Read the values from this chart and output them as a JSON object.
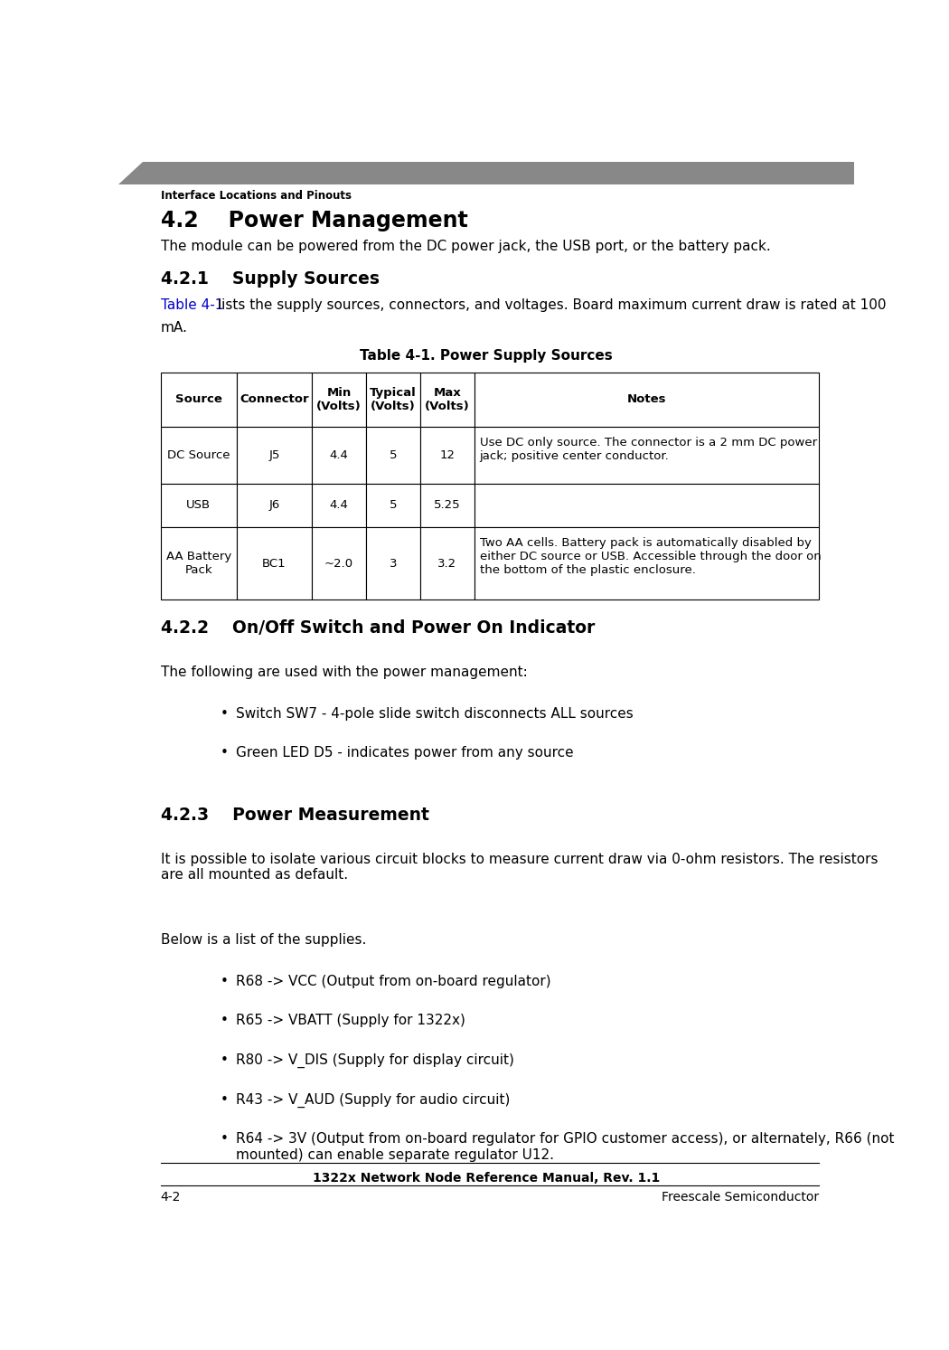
{
  "header_bar_color": "#888888",
  "header_text": "Interface Locations and Pinouts",
  "header_text_color": "#000000",
  "section_42_title": "4.2    Power Management",
  "section_42_body": "The module can be powered from the DC power jack, the USB port, or the battery pack.",
  "section_421_title": "4.2.1    Supply Sources",
  "section_421_intro_link": "Table 4-1",
  "section_421_intro_rest": " lists the supply sources, connectors, and voltages. Board maximum current draw is rated at 100",
  "section_421_intro_line2": "mA.",
  "table_caption": "Table 4-1. Power Supply Sources",
  "table_headers": [
    "Source",
    "Connector",
    "Min\n(Volts)",
    "Typical\n(Volts)",
    "Max\n(Volts)",
    "Notes"
  ],
  "table_rows": [
    [
      "DC Source",
      "J5",
      "4.4",
      "5",
      "12",
      "Use DC only source. The connector is a 2 mm DC power\njack; positive center conductor."
    ],
    [
      "USB",
      "J6",
      "4.4",
      "5",
      "5.25",
      ""
    ],
    [
      "AA Battery\nPack",
      "BC1",
      "~2.0",
      "3",
      "3.2",
      "Two AA cells. Battery pack is automatically disabled by\neither DC source or USB. Accessible through the door on\nthe bottom of the plastic enclosure."
    ]
  ],
  "section_422_title": "4.2.2    On/Off Switch and Power On Indicator",
  "section_422_body": "The following are used with the power management:",
  "section_422_bullets": [
    "Switch SW7 - 4-pole slide switch disconnects ALL sources",
    "Green LED D5 - indicates power from any source"
  ],
  "section_423_title": "4.2.3    Power Measurement",
  "section_423_body1": "It is possible to isolate various circuit blocks to measure current draw via 0-ohm resistors. The resistors\nare all mounted as default.",
  "section_423_body2": "Below is a list of the supplies.",
  "section_423_bullets": [
    "R68 -> VCC (Output from on-board regulator)",
    "R65 -> VBATT (Supply for 1322x)",
    "R80 -> V_DIS (Supply for display circuit)",
    "R43 -> V_AUD (Supply for audio circuit)",
    "R64 -> 3V (Output from on-board regulator for GPIO customer access), or alternately, R66 (not\nmounted) can enable separate regulator U12."
  ],
  "footer_center": "1322x Network Node Reference Manual, Rev. 1.1",
  "footer_left": "4-2",
  "footer_right": "Freescale Semiconductor",
  "link_color": "#0000CC",
  "body_color": "#000000",
  "bg_color": "#ffffff",
  "table_border_color": "#000000"
}
